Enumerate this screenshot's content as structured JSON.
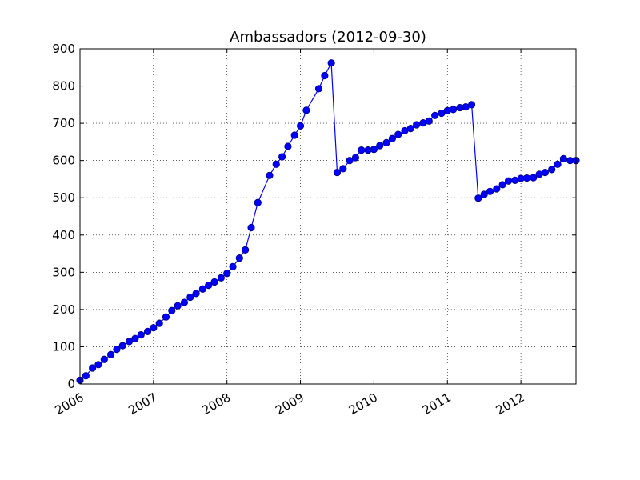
{
  "chart_data": {
    "type": "line",
    "title": "Ambassadors (2012-09-30)",
    "xlabel": "",
    "ylabel": "",
    "xlim": [
      2006.0,
      2012.75
    ],
    "ylim": [
      0,
      900
    ],
    "x_ticks": [
      {
        "value": 2006,
        "label": "2006"
      },
      {
        "value": 2007,
        "label": "2007"
      },
      {
        "value": 2008,
        "label": "2008"
      },
      {
        "value": 2009,
        "label": "2009"
      },
      {
        "value": 2010,
        "label": "2010"
      },
      {
        "value": 2011,
        "label": "2011"
      },
      {
        "value": 2012,
        "label": "2012"
      }
    ],
    "y_ticks": [
      {
        "value": 0,
        "label": "0"
      },
      {
        "value": 100,
        "label": "100"
      },
      {
        "value": 200,
        "label": "200"
      },
      {
        "value": 300,
        "label": "300"
      },
      {
        "value": 400,
        "label": "400"
      },
      {
        "value": 500,
        "label": "500"
      },
      {
        "value": 600,
        "label": "600"
      },
      {
        "value": 700,
        "label": "700"
      },
      {
        "value": 800,
        "label": "800"
      },
      {
        "value": 900,
        "label": "900"
      }
    ],
    "grid": true,
    "series": [
      {
        "color": "#0000ff",
        "marker": "circle",
        "x": [
          2006.0,
          2006.08,
          2006.17,
          2006.25,
          2006.33,
          2006.42,
          2006.5,
          2006.58,
          2006.67,
          2006.75,
          2006.83,
          2006.92,
          2007.0,
          2007.08,
          2007.17,
          2007.25,
          2007.33,
          2007.42,
          2007.5,
          2007.58,
          2007.67,
          2007.75,
          2007.83,
          2007.92,
          2008.0,
          2008.08,
          2008.17,
          2008.25,
          2008.33,
          2008.42,
          2008.58,
          2008.67,
          2008.75,
          2008.83,
          2008.92,
          2009.0,
          2009.08,
          2009.25,
          2009.33,
          2009.42,
          2009.5,
          2009.58,
          2009.67,
          2009.75,
          2009.83,
          2009.92,
          2010.0,
          2010.08,
          2010.17,
          2010.25,
          2010.33,
          2010.42,
          2010.5,
          2010.58,
          2010.67,
          2010.75,
          2010.83,
          2010.92,
          2011.0,
          2011.08,
          2011.17,
          2011.25,
          2011.33,
          2011.42,
          2011.5,
          2011.58,
          2011.67,
          2011.75,
          2011.83,
          2011.92,
          2012.0,
          2012.08,
          2012.17,
          2012.25,
          2012.33,
          2012.42,
          2012.5,
          2012.58,
          2012.67,
          2012.75
        ],
        "y": [
          10,
          22,
          43,
          52,
          66,
          79,
          93,
          103,
          114,
          122,
          132,
          141,
          151,
          163,
          180,
          197,
          210,
          219,
          233,
          243,
          255,
          265,
          274,
          285,
          297,
          315,
          338,
          360,
          420,
          487,
          560,
          590,
          610,
          638,
          668,
          693,
          735,
          793,
          828,
          862,
          568,
          578,
          600,
          608,
          628,
          628,
          630,
          640,
          648,
          659,
          670,
          680,
          686,
          696,
          701,
          706,
          721,
          727,
          734,
          737,
          742,
          744,
          750,
          499,
          509,
          517,
          524,
          535,
          545,
          547,
          552,
          553,
          554,
          563,
          568,
          576,
          590,
          605,
          600,
          600
        ]
      }
    ]
  }
}
